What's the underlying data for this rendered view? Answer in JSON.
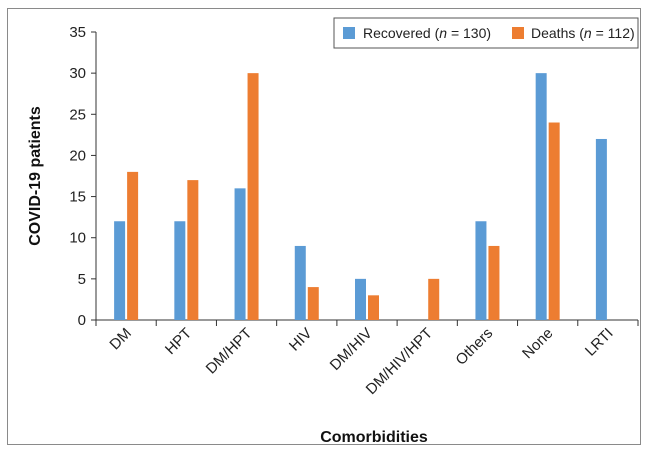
{
  "chart_data": {
    "type": "bar",
    "categories": [
      "DM",
      "HPT",
      "DM/HPT",
      "HIV",
      "DM/HIV",
      "DM/HIV/HPT",
      "Others",
      "None",
      "LRTI"
    ],
    "series": [
      {
        "name": "Recovered (n = 130)",
        "name_prefix": "Recovered (",
        "name_italic": "n",
        "name_suffix": " = 130)",
        "color": "#5b9bd5",
        "values": [
          12,
          12,
          16,
          9,
          5,
          0,
          12,
          30,
          22
        ]
      },
      {
        "name": "Deaths (n = 112)",
        "name_prefix": "Deaths (",
        "name_italic": "n",
        "name_suffix": " = 112)",
        "color": "#ed7d31",
        "values": [
          18,
          17,
          30,
          4,
          3,
          5,
          9,
          24,
          0
        ]
      }
    ],
    "xlabel": "Comorbidities",
    "ylabel": "COVID-19 patients",
    "ylim": [
      0,
      35
    ],
    "yticks": [
      0,
      5,
      10,
      15,
      20,
      25,
      30,
      35
    ],
    "grid": false,
    "legend_position": "top-right"
  }
}
